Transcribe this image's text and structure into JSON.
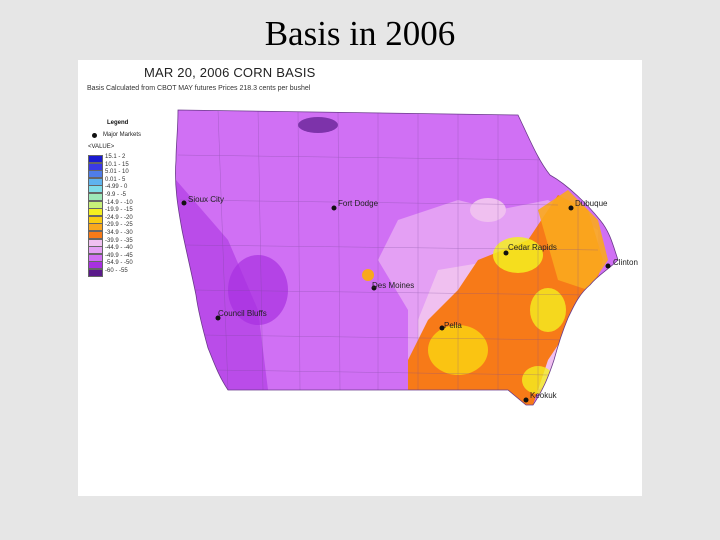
{
  "slide": {
    "title": "Basis in 2006"
  },
  "map": {
    "title": "MAR 20, 2006 CORN BASIS",
    "subtitle": "Basis Calculated from CBOT MAY futures Prices 218.3 cents per bushel"
  },
  "legend": {
    "heading": "Legend",
    "marker_label": "Major Markets",
    "value_label": "<VALUE>",
    "classes": [
      {
        "label": "15.1 - 2",
        "color": "#1a1ad0"
      },
      {
        "label": "10.1 - 15",
        "color": "#3a3ae6"
      },
      {
        "label": "5.01 - 10",
        "color": "#4f7de8"
      },
      {
        "label": "0.01 - 5",
        "color": "#5fb3ee"
      },
      {
        "label": "-4.99 - 0",
        "color": "#7fdde8"
      },
      {
        "label": "-9.9 - -5",
        "color": "#9ee8b8"
      },
      {
        "label": "-14.9 - -10",
        "color": "#c8f07a"
      },
      {
        "label": "-19.9 - -15",
        "color": "#f4f020"
      },
      {
        "label": "-24.9 - -20",
        "color": "#f9cc12"
      },
      {
        "label": "-29.9 - -25",
        "color": "#f9a81e"
      },
      {
        "label": "-34.9 - -30",
        "color": "#f77a18"
      },
      {
        "label": "-39.9 - -35",
        "color": "#f0c0f0"
      },
      {
        "label": "-44.9 - -40",
        "color": "#e4a0f4"
      },
      {
        "label": "-49.9 - -45",
        "color": "#d070f4"
      },
      {
        "label": "-54.9 - -50",
        "color": "#a830e0"
      },
      {
        "label": "-60 - -55",
        "color": "#5a1a8a"
      }
    ]
  },
  "cities": [
    {
      "name": "Sioux City"
    },
    {
      "name": "Fort Dodge"
    },
    {
      "name": "Dubuque"
    },
    {
      "name": "Cedar Rapids"
    },
    {
      "name": "Clinton"
    },
    {
      "name": "Des Moines"
    },
    {
      "name": "Council Bluffs"
    },
    {
      "name": "Pella"
    },
    {
      "name": "Keokuk"
    }
  ]
}
